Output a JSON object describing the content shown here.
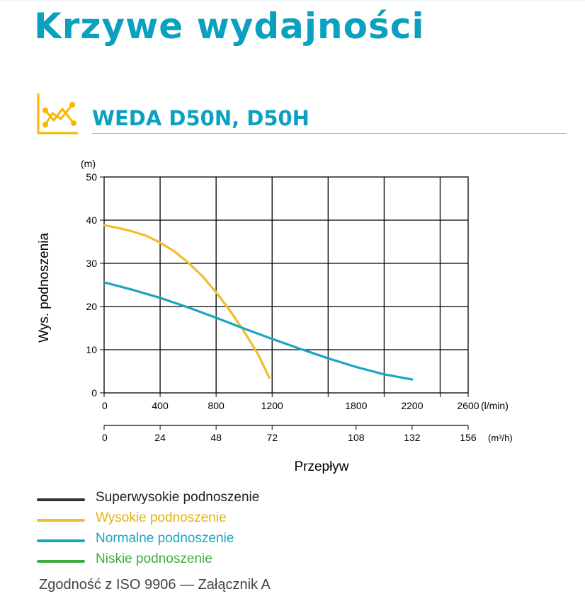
{
  "header": {
    "title": "Krzywe wydajności"
  },
  "section": {
    "title": "WEDA D50N, D50H",
    "icon": "chart-line-icon",
    "accent": "#f5b800"
  },
  "colors": {
    "title": "#0aa0bf",
    "axis": "#000000"
  },
  "chart_data": {
    "type": "line",
    "title": "",
    "ylabel": "Wys. podnoszenia",
    "yunit": "(m)",
    "xlabel": "Przepływ",
    "xunit": "(l/min)",
    "x2unit": "(m³/h)",
    "xlim": [
      0,
      2600
    ],
    "ylim": [
      0,
      50
    ],
    "x_ticks": [
      0,
      400,
      800,
      1200,
      1800,
      2200,
      2600
    ],
    "x_grid": [
      0,
      400,
      800,
      1200,
      1600,
      2000,
      2400,
      2600
    ],
    "y_ticks": [
      0,
      10,
      20,
      30,
      40,
      50
    ],
    "x2_ticks": [
      {
        "value": 0,
        "label": "0"
      },
      {
        "value": 24,
        "label": "24"
      },
      {
        "value": 48,
        "label": "48"
      },
      {
        "value": 72,
        "label": "72"
      },
      {
        "value": 108,
        "label": "108"
      },
      {
        "value": 132,
        "label": "132"
      },
      {
        "value": 156,
        "label": "156"
      }
    ],
    "x2lim": [
      0,
      156
    ],
    "grid": true,
    "legend_position": "bottom-left",
    "series": [
      {
        "name": "Wysokie podnoszenie",
        "color": "#f2bd2c",
        "x": [
          0,
          100,
          200,
          300,
          400,
          500,
          600,
          700,
          800,
          900,
          1000,
          1100,
          1180
        ],
        "y": [
          38.8,
          38.2,
          37.4,
          36.4,
          34.8,
          32.8,
          30.2,
          27.1,
          23.3,
          19.0,
          14.2,
          8.9,
          3.5
        ]
      },
      {
        "name": "Normalne podnoszenie",
        "color": "#1aa5c0",
        "x": [
          0,
          200,
          400,
          600,
          800,
          1000,
          1200,
          1400,
          1600,
          1800,
          2000,
          2200
        ],
        "y": [
          25.6,
          23.9,
          22.0,
          19.8,
          17.4,
          14.9,
          12.5,
          10.2,
          8.0,
          6.0,
          4.3,
          3.1
        ]
      }
    ]
  },
  "legend": {
    "items": [
      {
        "label": "Superwysokie podnoszenie",
        "color": "#333333",
        "text_color": "#222222"
      },
      {
        "label": "Wysokie podnoszenie",
        "color": "#f2bd2c",
        "text_color": "#e8b10c"
      },
      {
        "label": "Normalne podnoszenie",
        "color": "#1aa5c0",
        "text_color": "#1aa5c0"
      },
      {
        "label": "Niskie podnoszenie",
        "color": "#3dae3d",
        "text_color": "#3dae3d"
      }
    ]
  },
  "footer": {
    "note": "Zgodność z ISO 9906 — Załącznik A"
  }
}
